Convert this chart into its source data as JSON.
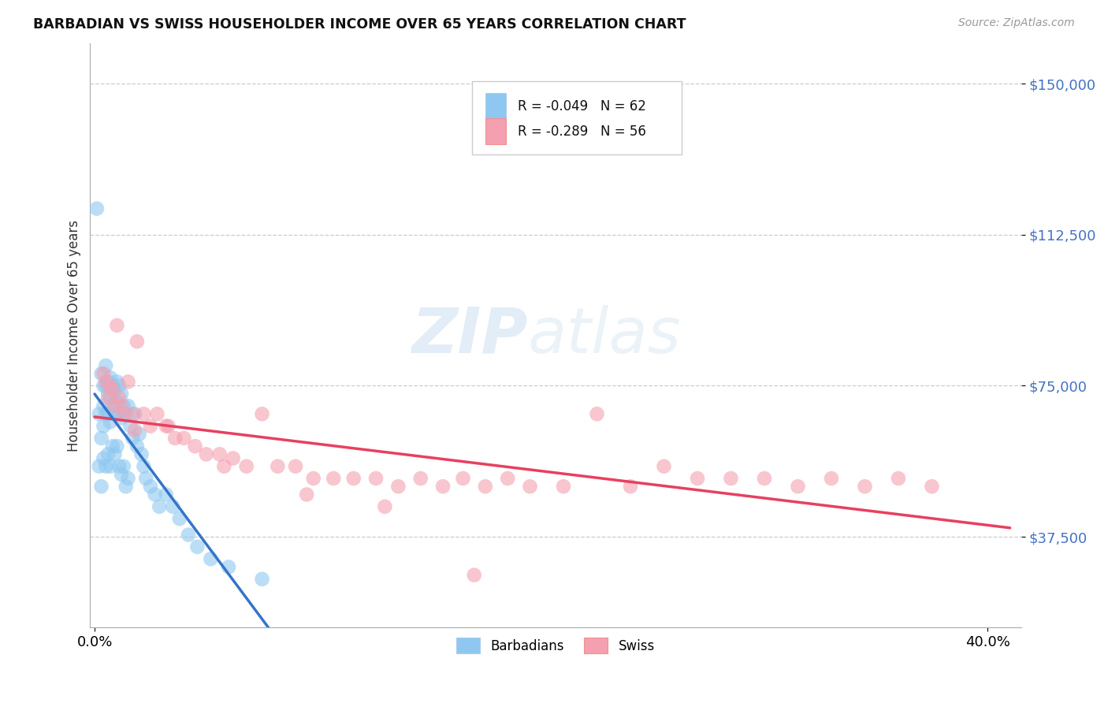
{
  "title": "BARBADIAN VS SWISS HOUSEHOLDER INCOME OVER 65 YEARS CORRELATION CHART",
  "source": "Source: ZipAtlas.com",
  "ylabel": "Householder Income Over 65 years",
  "xlim": [
    -0.002,
    0.415
  ],
  "ylim": [
    15000,
    160000
  ],
  "yticks": [
    37500,
    75000,
    112500,
    150000
  ],
  "ytick_labels": [
    "$37,500",
    "$75,000",
    "$112,500",
    "$150,000"
  ],
  "xtick_vals": [
    0.0,
    0.4
  ],
  "xtick_labels": [
    "0.0%",
    "40.0%"
  ],
  "barbadian_color": "#8ec8f0",
  "swiss_color": "#f4a0b0",
  "trend_barbadian_solid_color": "#3575c8",
  "trend_swiss_solid_color": "#e84060",
  "trend_barbadian_dash_color": "#8ec8f0",
  "R_barbadian": -0.049,
  "N_barbadian": 62,
  "R_swiss": -0.289,
  "N_swiss": 56,
  "watermark": "ZIPatlas",
  "barbadian_x": [
    0.001,
    0.002,
    0.002,
    0.003,
    0.003,
    0.003,
    0.004,
    0.004,
    0.004,
    0.004,
    0.005,
    0.005,
    0.005,
    0.005,
    0.006,
    0.006,
    0.006,
    0.006,
    0.007,
    0.007,
    0.007,
    0.007,
    0.008,
    0.008,
    0.008,
    0.009,
    0.009,
    0.009,
    0.01,
    0.01,
    0.01,
    0.011,
    0.011,
    0.011,
    0.012,
    0.012,
    0.012,
    0.013,
    0.013,
    0.014,
    0.014,
    0.015,
    0.015,
    0.016,
    0.017,
    0.018,
    0.019,
    0.02,
    0.021,
    0.022,
    0.023,
    0.025,
    0.027,
    0.029,
    0.032,
    0.035,
    0.038,
    0.042,
    0.046,
    0.052,
    0.06,
    0.075
  ],
  "barbadian_y": [
    119000,
    68000,
    55000,
    78000,
    62000,
    50000,
    75000,
    70000,
    65000,
    57000,
    80000,
    75000,
    68000,
    55000,
    76000,
    73000,
    68000,
    58000,
    77000,
    72000,
    66000,
    55000,
    75000,
    70000,
    60000,
    74000,
    68000,
    58000,
    76000,
    71000,
    60000,
    75000,
    68000,
    55000,
    73000,
    67000,
    53000,
    70000,
    55000,
    68000,
    50000,
    70000,
    52000,
    65000,
    62000,
    68000,
    60000,
    63000,
    58000,
    55000,
    52000,
    50000,
    48000,
    45000,
    48000,
    45000,
    42000,
    38000,
    35000,
    32000,
    30000,
    27000
  ],
  "swiss_x": [
    0.004,
    0.005,
    0.006,
    0.007,
    0.008,
    0.009,
    0.01,
    0.011,
    0.012,
    0.013,
    0.015,
    0.017,
    0.019,
    0.022,
    0.025,
    0.028,
    0.032,
    0.036,
    0.04,
    0.045,
    0.05,
    0.056,
    0.062,
    0.068,
    0.075,
    0.082,
    0.09,
    0.098,
    0.107,
    0.116,
    0.126,
    0.136,
    0.146,
    0.156,
    0.165,
    0.175,
    0.185,
    0.195,
    0.21,
    0.225,
    0.24,
    0.255,
    0.27,
    0.285,
    0.3,
    0.315,
    0.33,
    0.345,
    0.36,
    0.375,
    0.018,
    0.033,
    0.058,
    0.095,
    0.13,
    0.17
  ],
  "swiss_y": [
    78000,
    76000,
    72000,
    75000,
    74000,
    70000,
    90000,
    72000,
    70000,
    68000,
    76000,
    68000,
    86000,
    68000,
    65000,
    68000,
    65000,
    62000,
    62000,
    60000,
    58000,
    58000,
    57000,
    55000,
    68000,
    55000,
    55000,
    52000,
    52000,
    52000,
    52000,
    50000,
    52000,
    50000,
    52000,
    50000,
    52000,
    50000,
    50000,
    68000,
    50000,
    55000,
    52000,
    52000,
    52000,
    50000,
    52000,
    50000,
    52000,
    50000,
    64000,
    65000,
    55000,
    48000,
    45000,
    28000
  ]
}
